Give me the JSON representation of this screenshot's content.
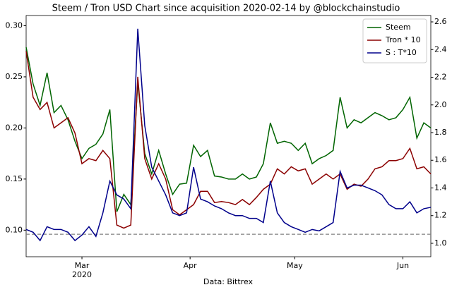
{
  "chart_data": {
    "type": "line",
    "title": "Steem / Tron USD Chart since acquisition 2020-02-14 by @blockchainstudio",
    "xlabel": "Data: Bittrex",
    "x": [
      0,
      2,
      4,
      6,
      8,
      10,
      12,
      14,
      16,
      18,
      20,
      22,
      24,
      26,
      28,
      30,
      32,
      34,
      36,
      38,
      40,
      42,
      44,
      46,
      48,
      50,
      52,
      54,
      56,
      58,
      60,
      62,
      64,
      66,
      68,
      70,
      72,
      74,
      76,
      78,
      80,
      82,
      84,
      86,
      88,
      90,
      92,
      94,
      96,
      98,
      100,
      102,
      104,
      106,
      108,
      110,
      112,
      114,
      116
    ],
    "xlim": [
      0,
      116
    ],
    "xticks": [
      {
        "value": 16,
        "label": "Mar\n2020"
      },
      {
        "value": 47,
        "label": "Apr"
      },
      {
        "value": 77,
        "label": "May"
      },
      {
        "value": 108,
        "label": "Jun"
      }
    ],
    "ylim": [
      0.074,
      0.31
    ],
    "yticks": [
      {
        "value": 0.1,
        "label": "0.10"
      },
      0.15,
      {
        "value": 0.2,
        "label": "0.20"
      },
      0.25,
      {
        "value": 0.3,
        "label": "0.30"
      }
    ],
    "y2lim": [
      0.903,
      2.646
    ],
    "y2ticks": [
      {
        "value": 1.0,
        "label": "1.0"
      },
      1.2,
      1.4,
      1.6,
      1.8,
      {
        "value": 2.0,
        "label": "2.0"
      },
      2.2,
      2.4,
      2.6
    ],
    "hline": {
      "value": 0.096,
      "color": "#808080"
    },
    "legend": "upper right",
    "series": [
      {
        "name": "Steem",
        "color": "#006400",
        "values": [
          0.279,
          0.243,
          0.222,
          0.254,
          0.215,
          0.222,
          0.208,
          0.187,
          0.17,
          0.18,
          0.184,
          0.194,
          0.218,
          0.118,
          0.135,
          0.125,
          0.245,
          0.175,
          0.155,
          0.178,
          0.155,
          0.135,
          0.145,
          0.146,
          0.183,
          0.172,
          0.178,
          0.153,
          0.152,
          0.15,
          0.15,
          0.155,
          0.15,
          0.152,
          0.165,
          0.205,
          0.185,
          0.187,
          0.185,
          0.178,
          0.185,
          0.165,
          0.17,
          0.173,
          0.178,
          0.23,
          0.2,
          0.208,
          0.205,
          0.21,
          0.215,
          0.212,
          0.208,
          0.21,
          0.218,
          0.23,
          0.19,
          0.205,
          0.2
        ]
      },
      {
        "name": "Tron * 10",
        "color": "#8b0000",
        "values": [
          0.275,
          0.23,
          0.218,
          0.225,
          0.2,
          0.205,
          0.21,
          0.195,
          0.165,
          0.17,
          0.168,
          0.178,
          0.17,
          0.105,
          0.102,
          0.105,
          0.25,
          0.17,
          0.15,
          0.165,
          0.15,
          0.12,
          0.115,
          0.12,
          0.125,
          0.138,
          0.138,
          0.127,
          0.128,
          0.127,
          0.125,
          0.13,
          0.125,
          0.132,
          0.14,
          0.145,
          0.16,
          0.155,
          0.162,
          0.158,
          0.16,
          0.145,
          0.15,
          0.155,
          0.15,
          0.155,
          0.14,
          0.145,
          0.143,
          0.15,
          0.16,
          0.162,
          0.168,
          0.168,
          0.17,
          0.18,
          0.16,
          0.162,
          0.155
        ]
      },
      {
        "name": "S : T*10",
        "color": "#00008b",
        "axis": "y2",
        "values": [
          1.1,
          1.08,
          1.02,
          1.12,
          1.1,
          1.1,
          1.08,
          1.02,
          1.06,
          1.12,
          1.05,
          1.22,
          1.45,
          1.35,
          1.32,
          1.25,
          2.55,
          1.85,
          1.55,
          1.45,
          1.35,
          1.22,
          1.2,
          1.22,
          1.55,
          1.32,
          1.3,
          1.27,
          1.25,
          1.22,
          1.2,
          1.2,
          1.18,
          1.18,
          1.15,
          1.45,
          1.22,
          1.15,
          1.12,
          1.1,
          1.08,
          1.1,
          1.09,
          1.12,
          1.15,
          1.52,
          1.4,
          1.42,
          1.42,
          1.4,
          1.38,
          1.35,
          1.28,
          1.25,
          1.25,
          1.3,
          1.22,
          1.25,
          1.26
        ]
      }
    ]
  }
}
